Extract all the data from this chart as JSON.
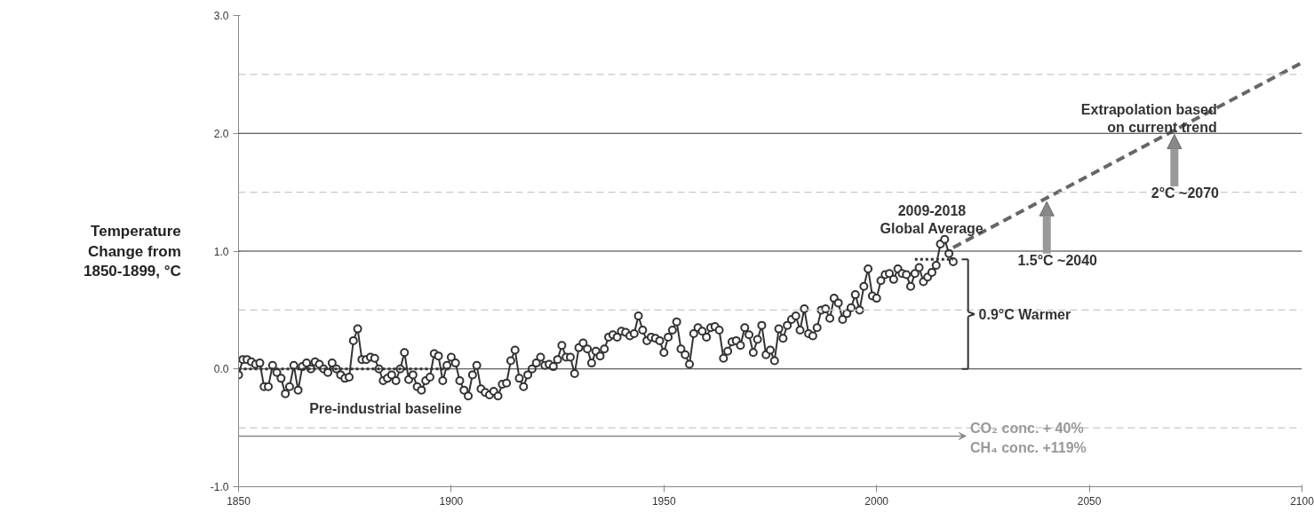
{
  "chart_data": {
    "type": "line",
    "ylabel": "Temperature Change from 1850-1899, °C",
    "xlim": [
      1850,
      2100
    ],
    "xticks": [
      1850,
      1900,
      1950,
      2000,
      2050,
      2100
    ],
    "ylim": [
      -1.0,
      3.0
    ],
    "yticks": [
      {
        "value": -1.0,
        "label": "-1.0"
      },
      {
        "value": -0.5,
        "label": null
      },
      {
        "value": 0,
        "label": "0.0"
      },
      {
        "value": 0.5,
        "label": null
      },
      {
        "value": 1.0,
        "label": "1.0"
      },
      {
        "value": 1.5,
        "label": null
      },
      {
        "value": 2.0,
        "label": "2.0"
      },
      {
        "value": 2.5,
        "label": null
      },
      {
        "value": 3.0,
        "label": "3.0"
      }
    ],
    "grid": "y",
    "series": [
      {
        "marker": "circle",
        "color": "#333333",
        "x": [
          1850,
          1851,
          1852,
          1853,
          1854,
          1855,
          1856,
          1857,
          1858,
          1859,
          1860,
          1861,
          1862,
          1863,
          1864,
          1865,
          1866,
          1867,
          1868,
          1869,
          1870,
          1871,
          1872,
          1873,
          1874,
          1875,
          1876,
          1877,
          1878,
          1879,
          1880,
          1881,
          1882,
          1883,
          1884,
          1885,
          1886,
          1887,
          1888,
          1889,
          1890,
          1891,
          1892,
          1893,
          1894,
          1895,
          1896,
          1897,
          1898,
          1899,
          1900,
          1901,
          1902,
          1903,
          1904,
          1905,
          1906,
          1907,
          1908,
          1909,
          1910,
          1911,
          1912,
          1913,
          1914,
          1915,
          1916,
          1917,
          1918,
          1919,
          1920,
          1921,
          1922,
          1923,
          1924,
          1925,
          1926,
          1927,
          1928,
          1929,
          1930,
          1931,
          1932,
          1933,
          1934,
          1935,
          1936,
          1937,
          1938,
          1939,
          1940,
          1941,
          1942,
          1943,
          1944,
          1945,
          1946,
          1947,
          1948,
          1949,
          1950,
          1951,
          1952,
          1953,
          1954,
          1955,
          1956,
          1957,
          1958,
          1959,
          1960,
          1961,
          1962,
          1963,
          1964,
          1965,
          1966,
          1967,
          1968,
          1969,
          1970,
          1971,
          1972,
          1973,
          1974,
          1975,
          1976,
          1977,
          1978,
          1979,
          1980,
          1981,
          1982,
          1983,
          1984,
          1985,
          1986,
          1987,
          1988,
          1989,
          1990,
          1991,
          1992,
          1993,
          1994,
          1995,
          1996,
          1997,
          1998,
          1999,
          2000,
          2001,
          2002,
          2003,
          2004,
          2005,
          2006,
          2007,
          2008,
          2009,
          2010,
          2011,
          2012,
          2013,
          2014,
          2015,
          2016,
          2017,
          2018
        ],
        "values": [
          -0.05,
          0.08,
          0.08,
          0.06,
          0.04,
          0.05,
          -0.15,
          -0.15,
          0.03,
          -0.03,
          -0.08,
          -0.21,
          -0.15,
          0.03,
          -0.18,
          0.02,
          0.05,
          0.0,
          0.06,
          0.04,
          0.0,
          -0.03,
          0.05,
          0.0,
          -0.05,
          -0.08,
          -0.07,
          0.24,
          0.34,
          0.08,
          0.08,
          0.1,
          0.09,
          0.0,
          -0.1,
          -0.08,
          -0.05,
          -0.1,
          0.0,
          0.14,
          -0.09,
          -0.05,
          -0.15,
          -0.18,
          -0.1,
          -0.07,
          0.13,
          0.11,
          -0.1,
          0.03,
          0.1,
          0.05,
          -0.1,
          -0.18,
          -0.23,
          -0.05,
          0.03,
          -0.17,
          -0.2,
          -0.22,
          -0.19,
          -0.23,
          -0.13,
          -0.12,
          0.07,
          0.16,
          -0.08,
          -0.15,
          -0.05,
          0.0,
          0.05,
          0.1,
          0.03,
          0.04,
          0.02,
          0.08,
          0.2,
          0.1,
          0.1,
          -0.04,
          0.18,
          0.22,
          0.17,
          0.05,
          0.15,
          0.11,
          0.17,
          0.27,
          0.29,
          0.27,
          0.32,
          0.31,
          0.28,
          0.3,
          0.45,
          0.33,
          0.24,
          0.27,
          0.26,
          0.24,
          0.14,
          0.27,
          0.33,
          0.4,
          0.17,
          0.12,
          0.04,
          0.3,
          0.35,
          0.32,
          0.27,
          0.35,
          0.36,
          0.33,
          0.09,
          0.15,
          0.23,
          0.24,
          0.2,
          0.35,
          0.29,
          0.14,
          0.25,
          0.37,
          0.12,
          0.16,
          0.07,
          0.34,
          0.26,
          0.37,
          0.42,
          0.45,
          0.33,
          0.51,
          0.3,
          0.28,
          0.35,
          0.5,
          0.51,
          0.43,
          0.6,
          0.56,
          0.42,
          0.47,
          0.52,
          0.63,
          0.5,
          0.7,
          0.85,
          0.62,
          0.6,
          0.75,
          0.8,
          0.81,
          0.76,
          0.85,
          0.81,
          0.8,
          0.7,
          0.81,
          0.86,
          0.74,
          0.78,
          0.82,
          0.88,
          1.06,
          1.1,
          0.98,
          0.91
        ]
      },
      {
        "line_style": "dotted",
        "color": "#333333",
        "x": [
          1850,
          1900
        ],
        "values": [
          0,
          0
        ]
      },
      {
        "line_style": "dotted",
        "color": "#333333",
        "x": [
          2009,
          2018
        ],
        "values": [
          0.93,
          0.93
        ]
      },
      {
        "line_style": "dashed",
        "color": "#666666",
        "x": [
          2018,
          2100
        ],
        "values": [
          1.03,
          2.6
        ]
      }
    ],
    "annotations": [
      {
        "text": "Pre-industrial baseline",
        "x": 1875,
        "y": 0
      },
      {
        "text": "2009-2018 Global Average",
        "x": 2013,
        "y": 0.93
      },
      {
        "text": "Extrapolation based on current trend",
        "x": 2080,
        "y": 2.2
      },
      {
        "text": "1.5°C ~2040",
        "x": 2040,
        "y": 1.45
      },
      {
        "text": "2°C ~2070",
        "x": 2070,
        "y": 2.02
      },
      "0.9°C Warmer",
      "CO₂ conc. + 40%",
      "CH₄ conc. +119%"
    ]
  }
}
